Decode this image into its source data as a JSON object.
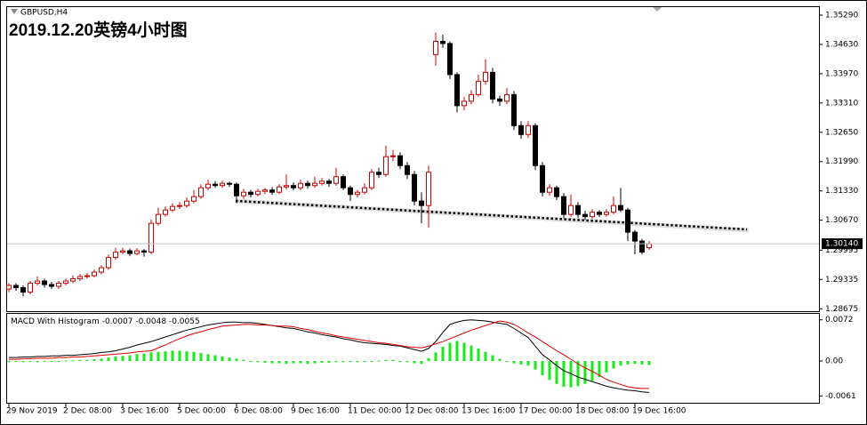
{
  "chart_data": {
    "type": "candlestick",
    "title": "2019.12.20英镑4小时图",
    "symbol": "GBPUSD,H4",
    "up_color": "#d00000",
    "down_color": "#000000",
    "categories": [
      "29 Nov 2019",
      null,
      null,
      null,
      null,
      null,
      null,
      null,
      "2 Dec 08:00",
      null,
      null,
      null,
      null,
      null,
      null,
      null,
      "3 Dec 16:00",
      null,
      null,
      null,
      null,
      null,
      null,
      null,
      "5 Dec 00:00",
      null,
      null,
      null,
      null,
      null,
      null,
      null,
      "6 Dec 08:00",
      null,
      null,
      null,
      null,
      null,
      null,
      null,
      "9 Dec 16:00",
      null,
      null,
      null,
      null,
      null,
      null,
      null,
      "11 Dec 00:00",
      null,
      null,
      null,
      null,
      null,
      null,
      null,
      "12 Dec 08:00",
      null,
      null,
      null,
      null,
      null,
      null,
      null,
      "13 Dec 16:00",
      null,
      null,
      null,
      null,
      null,
      null,
      null,
      "17 Dec 00:00",
      null,
      null,
      null,
      null,
      null,
      null,
      null,
      "18 Dec 08:00",
      null,
      null,
      null,
      null,
      null,
      null,
      null,
      "19 Dec 16:00",
      null,
      null
    ],
    "open": [
      1.2912,
      1.292,
      1.2915,
      1.2905,
      1.2925,
      1.293,
      1.2922,
      1.2918,
      1.2925,
      1.293,
      1.2935,
      1.294,
      1.2942,
      1.295,
      1.296,
      1.2983,
      1.2995,
      1.2998,
      1.2992,
      1.2998,
      1.2995,
      1.306,
      1.308,
      1.309,
      1.3098,
      1.31,
      1.311,
      1.312,
      1.314,
      1.3148,
      1.3145,
      1.315,
      1.3148,
      1.3122,
      1.313,
      1.3125,
      1.3132,
      1.3135,
      1.313,
      1.3142,
      1.3145,
      1.314,
      1.315,
      1.3145,
      1.315,
      1.3155,
      1.315,
      1.3165,
      1.314,
      1.3125,
      1.313,
      1.314,
      1.3175,
      1.317,
      1.321,
      1.3212,
      1.319,
      1.317,
      1.311,
      1.31,
      1.344,
      1.347,
      1.3465,
      1.3395,
      1.3325,
      1.3335,
      1.335,
      1.338,
      1.34,
      1.334,
      1.3335,
      1.335,
      1.328,
      1.326,
      1.328,
      1.319,
      1.313,
      1.314,
      1.312,
      1.308,
      1.31,
      1.308,
      1.3075,
      1.3085,
      1.308,
      1.3085,
      1.31,
      1.309,
      1.304,
      1.302,
      1.3005
    ],
    "high": [
      1.2925,
      1.2925,
      1.292,
      1.293,
      1.294,
      1.2935,
      1.2928,
      1.293,
      1.2936,
      1.2942,
      1.2946,
      1.2948,
      1.2956,
      1.2966,
      1.299,
      1.3005,
      1.3005,
      1.3003,
      1.3004,
      1.3002,
      1.3068,
      1.3095,
      1.3098,
      1.3105,
      1.3108,
      1.3118,
      1.3135,
      1.3148,
      1.3158,
      1.3155,
      1.3156,
      1.3154,
      1.3152,
      1.3138,
      1.3135,
      1.3138,
      1.314,
      1.3142,
      1.3148,
      1.317,
      1.3152,
      1.3158,
      1.3156,
      1.3165,
      1.3162,
      1.316,
      1.3185,
      1.317,
      1.3145,
      1.3136,
      1.315,
      1.3182,
      1.3185,
      1.3235,
      1.3225,
      1.322,
      1.3198,
      1.3178,
      1.313,
      1.319,
      1.349,
      1.3485,
      1.347,
      1.34,
      1.3345,
      1.336,
      1.3395,
      1.343,
      1.341,
      1.3348,
      1.3365,
      1.3358,
      1.329,
      1.329,
      1.3285,
      1.3198,
      1.3148,
      1.3145,
      1.3128,
      1.3125,
      1.3108,
      1.3088,
      1.3092,
      1.309,
      1.3092,
      1.312,
      1.314,
      1.3095,
      1.3045,
      1.3025,
      1.302
    ],
    "low": [
      1.2905,
      1.2908,
      1.2895,
      1.29,
      1.292,
      1.2915,
      1.2912,
      1.2912,
      1.292,
      1.2925,
      1.293,
      1.2935,
      1.2938,
      1.2945,
      1.2955,
      1.2978,
      1.299,
      1.2986,
      1.2988,
      1.2985,
      1.299,
      1.3055,
      1.3075,
      1.3085,
      1.3092,
      1.3095,
      1.3105,
      1.3115,
      1.3135,
      1.314,
      1.314,
      1.3142,
      1.3105,
      1.3115,
      1.3118,
      1.312,
      1.3126,
      1.3124,
      1.3126,
      1.3136,
      1.3134,
      1.3135,
      1.3138,
      1.314,
      1.3145,
      1.3142,
      1.3145,
      1.3135,
      1.311,
      1.3118,
      1.3125,
      1.3135,
      1.3162,
      1.3165,
      1.32,
      1.3182,
      1.316,
      1.31,
      1.306,
      1.305,
      1.3415,
      1.3455,
      1.3385,
      1.331,
      1.3315,
      1.3328,
      1.3345,
      1.3372,
      1.333,
      1.3325,
      1.3328,
      1.327,
      1.325,
      1.3252,
      1.318,
      1.312,
      1.3122,
      1.3112,
      1.3072,
      1.3075,
      1.3072,
      1.3068,
      1.307,
      1.3074,
      1.3075,
      1.308,
      1.3085,
      1.302,
      1.299,
      1.299,
      1.3
    ],
    "close": [
      1.292,
      1.2915,
      1.2905,
      1.2925,
      1.293,
      1.2922,
      1.2918,
      1.2925,
      1.293,
      1.2935,
      1.294,
      1.2942,
      1.295,
      1.296,
      1.2983,
      1.2995,
      1.2998,
      1.2992,
      1.2998,
      1.2995,
      1.306,
      1.308,
      1.309,
      1.3098,
      1.31,
      1.311,
      1.312,
      1.314,
      1.3148,
      1.3145,
      1.315,
      1.3148,
      1.3122,
      1.313,
      1.3125,
      1.3132,
      1.3135,
      1.313,
      1.3142,
      1.3145,
      1.314,
      1.315,
      1.3145,
      1.315,
      1.3155,
      1.315,
      1.3165,
      1.314,
      1.3125,
      1.313,
      1.314,
      1.3175,
      1.317,
      1.321,
      1.3212,
      1.319,
      1.317,
      1.311,
      1.31,
      1.3175,
      1.347,
      1.3465,
      1.3395,
      1.3325,
      1.3335,
      1.335,
      1.338,
      1.34,
      1.334,
      1.3335,
      1.335,
      1.328,
      1.326,
      1.328,
      1.319,
      1.313,
      1.314,
      1.312,
      1.308,
      1.31,
      1.308,
      1.3075,
      1.3085,
      1.308,
      1.3085,
      1.31,
      1.309,
      1.304,
      1.302,
      1.2995,
      1.3014
    ],
    "ylim": [
      1.2864,
      1.3547
    ],
    "yticks": [
      {
        "value": 1.3529,
        "label": "1.35290"
      },
      {
        "value": 1.3463,
        "label": "1.34630"
      },
      {
        "value": 1.3397,
        "label": "1.33970"
      },
      {
        "value": 1.3331,
        "label": "1.33310"
      },
      {
        "value": 1.3265,
        "label": "1.32650"
      },
      {
        "value": 1.3199,
        "label": "1.31990"
      },
      {
        "value": 1.3133,
        "label": "1.31330"
      },
      {
        "value": 1.3067,
        "label": "1.30670"
      },
      {
        "value": 1.29995,
        "label": "1.29995"
      },
      {
        "value": 1.29335,
        "label": "1.29335"
      },
      {
        "value": 1.28675,
        "label": "1.28675"
      }
    ],
    "last_price": {
      "value": 1.3014,
      "label": "1.30140"
    },
    "macd": {
      "name": "MACD With Histogram",
      "header_values": [
        -0.0007,
        -0.0048,
        -0.0055
      ],
      "ylim": [
        -0.0073,
        0.0084
      ],
      "yticks": [
        0.0072,
        {
          "value": 0,
          "label": "0.00"
        },
        -0.0061
      ],
      "histogram": {
        "color": "#1ee61e",
        "values": [
          -0.0002,
          -0.0001,
          -0.0002,
          -0.0001,
          -0.0002,
          -0.0001,
          -0.0001,
          0.0,
          0.0001,
          0.0001,
          0.0002,
          0.0002,
          0.0003,
          0.0004,
          0.0006,
          0.0008,
          0.0009,
          0.001,
          0.0012,
          0.0013,
          0.0015,
          0.0016,
          0.0017,
          0.0018,
          0.0018,
          0.0017,
          0.0016,
          0.0014,
          0.0012,
          0.001,
          0.0008,
          0.0006,
          0.0004,
          0.0002,
          0.0,
          -0.0002,
          -0.0003,
          -0.0004,
          -0.0004,
          -0.0005,
          -0.0004,
          -0.0004,
          -0.0005,
          -0.0004,
          -0.0003,
          -0.0003,
          -0.0002,
          -0.0002,
          -0.0001,
          -0.0002,
          -0.0001,
          0.0,
          0.0001,
          0.0002,
          0.0002,
          0.0,
          -0.0002,
          -0.0004,
          -0.0005,
          0.0005,
          0.0015,
          0.0025,
          0.0032,
          0.0035,
          0.0032,
          0.0027,
          0.0022,
          0.0016,
          0.001,
          0.0004,
          0.0,
          -0.0004,
          -0.0006,
          -0.0008,
          -0.0015,
          -0.0025,
          -0.0033,
          -0.004,
          -0.0045,
          -0.0046,
          -0.0044,
          -0.004,
          -0.0035,
          -0.0028,
          -0.002,
          -0.0013,
          -0.0008,
          -0.0006,
          -0.0005,
          -0.0006,
          -0.0007
        ]
      },
      "series": [
        {
          "color": "#000000",
          "values": [
            0.0006,
            0.0006,
            0.0007,
            0.0007,
            0.0008,
            0.0008,
            0.0009,
            0.0009,
            0.001,
            0.001,
            0.0011,
            0.0012,
            0.0013,
            0.0015,
            0.0016,
            0.0018,
            0.0021,
            0.0024,
            0.0028,
            0.0031,
            0.0034,
            0.0038,
            0.0042,
            0.0046,
            0.005,
            0.0054,
            0.0057,
            0.006,
            0.0063,
            0.0065,
            0.0067,
            0.0068,
            0.0068,
            0.0067,
            0.0067,
            0.0066,
            0.0064,
            0.0062,
            0.006,
            0.0058,
            0.0057,
            0.0054,
            0.0051,
            0.0049,
            0.0046,
            0.0044,
            0.0042,
            0.0039,
            0.0037,
            0.0034,
            0.0032,
            0.0031,
            0.003,
            0.0029,
            0.0027,
            0.0026,
            0.0023,
            0.002,
            0.0017,
            0.0022,
            0.0034,
            0.005,
            0.0064,
            0.0068,
            0.0071,
            0.0072,
            0.0071,
            0.007,
            0.0068,
            0.0066,
            0.0064,
            0.0057,
            0.0049,
            0.0041,
            0.0026,
            0.0011,
            0.0002,
            -0.0008,
            -0.0017,
            -0.0022,
            -0.0028,
            -0.0032,
            -0.0036,
            -0.004,
            -0.0044,
            -0.0047,
            -0.0049,
            -0.0051,
            -0.0052,
            -0.0054,
            -0.0055
          ]
        },
        {
          "color": "#e00000",
          "values": [
            0.0003,
            0.0003,
            0.0004,
            0.0004,
            0.0005,
            0.0005,
            0.0005,
            0.0006,
            0.0006,
            0.0007,
            0.0007,
            0.0008,
            0.0009,
            0.001,
            0.0011,
            0.0012,
            0.0013,
            0.0014,
            0.0016,
            0.0017,
            0.0018,
            0.0023,
            0.0028,
            0.0034,
            0.0039,
            0.0044,
            0.0048,
            0.0051,
            0.0055,
            0.0058,
            0.0061,
            0.0062,
            0.0063,
            0.0064,
            0.0064,
            0.0063,
            0.0063,
            0.0062,
            0.0061,
            0.0061,
            0.006,
            0.0057,
            0.0055,
            0.0052,
            0.0049,
            0.0047,
            0.0044,
            0.0042,
            0.004,
            0.0038,
            0.0036,
            0.0034,
            0.0032,
            0.0031,
            0.0029,
            0.0027,
            0.0025,
            0.0024,
            0.0023,
            0.0026,
            0.003,
            0.0034,
            0.0039,
            0.0044,
            0.0049,
            0.0054,
            0.0058,
            0.0062,
            0.0066,
            0.007,
            0.0068,
            0.0064,
            0.0057,
            0.0049,
            0.0042,
            0.0034,
            0.0026,
            0.0018,
            0.0011,
            0.0003,
            -0.0005,
            -0.0012,
            -0.0018,
            -0.0025,
            -0.0032,
            -0.0037,
            -0.0041,
            -0.0045,
            -0.0047,
            -0.0048,
            -0.0048
          ]
        }
      ]
    }
  }
}
